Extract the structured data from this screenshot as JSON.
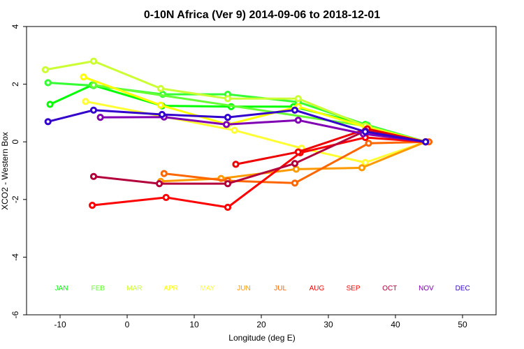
{
  "chart_data": {
    "type": "line",
    "title": "0-10N Africa (Ver 9)   2014-09-06 to 2018-12-01",
    "xlabel": "Longitude (deg E)",
    "ylabel": "XCO2 - Western Box",
    "xlim": [
      -15,
      55
    ],
    "ylim": [
      -6,
      4
    ],
    "xticks": [
      -10,
      0,
      10,
      20,
      30,
      40,
      50
    ],
    "yticks": [
      -6,
      -4,
      -2,
      0,
      2,
      4
    ],
    "grid": false,
    "legend_position": "bottom",
    "month_labels": [
      {
        "label": "JAN",
        "color": "#00ff00"
      },
      {
        "label": "FEB",
        "color": "#66ff33"
      },
      {
        "label": "MAR",
        "color": "#ccff33"
      },
      {
        "label": "APR",
        "color": "#ffff00"
      },
      {
        "label": "MAY",
        "color": "#ffff33"
      },
      {
        "label": "JUN",
        "color": "#ff9900"
      },
      {
        "label": "JUL",
        "color": "#ff6600"
      },
      {
        "label": "AUG",
        "color": "#ff0000"
      },
      {
        "label": "SEP",
        "color": "#ff0000"
      },
      {
        "label": "OCT",
        "color": "#b3003b"
      },
      {
        "label": "NOV",
        "color": "#8000b3"
      },
      {
        "label": "DEC",
        "color": "#3300cc"
      }
    ],
    "series": [
      {
        "color": "#00ff00",
        "points": [
          [
            -11.5,
            1.3
          ],
          [
            -5.2,
            1.97
          ],
          [
            5.2,
            1.25
          ],
          [
            15.5,
            1.22
          ],
          [
            24.8,
            1.22
          ],
          [
            35.5,
            0.6
          ],
          [
            44.5,
            0.0
          ]
        ]
      },
      {
        "color": "#33ff33",
        "points": [
          [
            -11.8,
            2.05
          ],
          [
            -5.0,
            1.95
          ],
          [
            5.3,
            1.65
          ],
          [
            15.0,
            1.65
          ],
          [
            25.5,
            1.38
          ],
          [
            35.8,
            0.58
          ],
          [
            44.5,
            0.0
          ]
        ]
      },
      {
        "color": "#66ff33",
        "points": [
          [
            -5.0,
            1.97
          ],
          [
            35.5,
            0.55
          ]
        ]
      },
      {
        "color": "#ccff33",
        "points": [
          [
            -12.2,
            2.5
          ],
          [
            -5.0,
            2.8
          ],
          [
            5.0,
            1.85
          ],
          [
            15.0,
            1.5
          ],
          [
            25.5,
            1.5
          ],
          [
            35.5,
            0.55
          ],
          [
            44.5,
            0.0
          ]
        ]
      },
      {
        "color": "#ffff00",
        "points": [
          [
            -6.5,
            2.25
          ],
          [
            5.0,
            1.27
          ],
          [
            15.0,
            0.6
          ],
          [
            25.5,
            1.22
          ],
          [
            36.0,
            0.48
          ],
          [
            44.5,
            0.0
          ]
        ]
      },
      {
        "color": "#ffff33",
        "points": [
          [
            -6.2,
            1.4
          ],
          [
            16.0,
            0.4
          ],
          [
            26.0,
            -0.22
          ],
          [
            35.5,
            -0.72
          ],
          [
            44.5,
            0.0
          ]
        ]
      },
      {
        "color": "#ff9900",
        "points": [
          [
            5.0,
            -1.37
          ],
          [
            14.0,
            -1.27
          ],
          [
            25.2,
            -0.95
          ],
          [
            35.0,
            -0.9
          ],
          [
            44.5,
            0.0
          ]
        ]
      },
      {
        "color": "#ff6600",
        "points": [
          [
            5.5,
            -1.1
          ],
          [
            15.0,
            -1.35
          ],
          [
            25.0,
            -1.43
          ],
          [
            36.0,
            -0.05
          ],
          [
            45.0,
            0.0
          ]
        ]
      },
      {
        "color": "#ff0000",
        "points": [
          [
            -5.2,
            -2.2
          ],
          [
            5.8,
            -1.93
          ],
          [
            15.0,
            -2.27
          ],
          [
            25.8,
            -0.38
          ],
          [
            35.5,
            0.15
          ],
          [
            44.5,
            0.0
          ]
        ]
      },
      {
        "color": "#ee0000",
        "points": [
          [
            16.2,
            -0.78
          ],
          [
            25.5,
            -0.35
          ],
          [
            35.8,
            0.45
          ],
          [
            44.5,
            0.0
          ]
        ]
      },
      {
        "color": "#b3003b",
        "points": [
          [
            -5.0,
            -1.2
          ],
          [
            4.8,
            -1.45
          ],
          [
            15.0,
            -1.45
          ],
          [
            25.0,
            -0.75
          ],
          [
            35.5,
            0.38
          ],
          [
            44.5,
            0.0
          ]
        ]
      },
      {
        "color": "#8000b3",
        "points": [
          [
            -4.0,
            0.85
          ],
          [
            5.5,
            0.86
          ],
          [
            14.8,
            0.6
          ],
          [
            25.5,
            0.75
          ],
          [
            35.2,
            0.28
          ],
          [
            44.5,
            0.0
          ]
        ]
      },
      {
        "color": "#3300cc",
        "points": [
          [
            -11.8,
            0.7
          ],
          [
            -5.0,
            1.1
          ],
          [
            5.2,
            0.95
          ],
          [
            15.0,
            0.85
          ],
          [
            25.0,
            1.1
          ],
          [
            35.5,
            0.35
          ],
          [
            44.5,
            0.0
          ]
        ]
      }
    ]
  }
}
